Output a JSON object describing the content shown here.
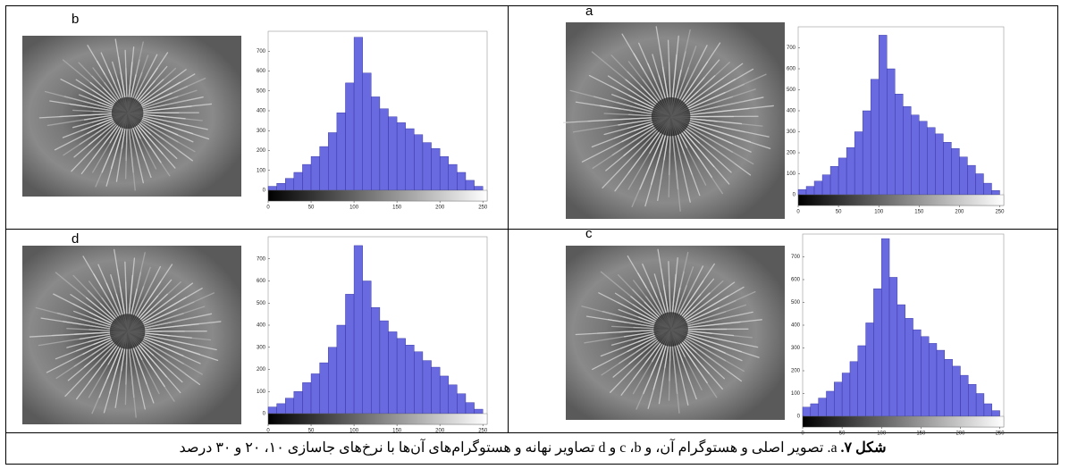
{
  "panels": [
    {
      "label": "b",
      "histogram": {
        "bins": [
          0,
          10,
          20,
          30,
          40,
          50,
          60,
          70,
          80,
          90,
          100,
          110,
          120,
          130,
          140,
          150,
          160,
          170,
          180,
          190,
          200,
          210,
          220,
          230,
          240,
          250
        ],
        "values": [
          20,
          35,
          60,
          90,
          130,
          170,
          220,
          290,
          390,
          540,
          770,
          590,
          470,
          410,
          370,
          340,
          310,
          280,
          240,
          210,
          170,
          130,
          90,
          50,
          20
        ],
        "xlim": [
          0,
          255
        ],
        "ylim": [
          0,
          800
        ],
        "xticks": [
          0,
          50,
          100,
          150,
          200,
          250
        ],
        "yticks": [
          0,
          100,
          200,
          300,
          400,
          500,
          600,
          700
        ]
      }
    },
    {
      "label": "a",
      "histogram": {
        "bins": [
          0,
          10,
          20,
          30,
          40,
          50,
          60,
          70,
          80,
          90,
          100,
          110,
          120,
          130,
          140,
          150,
          160,
          170,
          180,
          190,
          200,
          210,
          220,
          230,
          240,
          250
        ],
        "values": [
          25,
          40,
          65,
          95,
          135,
          175,
          225,
          300,
          400,
          550,
          760,
          600,
          480,
          420,
          380,
          350,
          320,
          290,
          250,
          220,
          180,
          140,
          100,
          55,
          20
        ],
        "xlim": [
          0,
          255
        ],
        "ylim": [
          0,
          800
        ],
        "xticks": [
          0,
          50,
          100,
          150,
          200,
          250
        ],
        "yticks": [
          0,
          100,
          200,
          300,
          400,
          500,
          600,
          700
        ]
      }
    },
    {
      "label": "d",
      "histogram": {
        "bins": [
          0,
          10,
          20,
          30,
          40,
          50,
          60,
          70,
          80,
          90,
          100,
          110,
          120,
          130,
          140,
          150,
          160,
          170,
          180,
          190,
          200,
          210,
          220,
          230,
          240,
          250
        ],
        "values": [
          30,
          45,
          70,
          100,
          140,
          180,
          230,
          300,
          400,
          540,
          760,
          600,
          480,
          420,
          370,
          340,
          310,
          280,
          240,
          210,
          170,
          130,
          90,
          50,
          20
        ],
        "xlim": [
          0,
          255
        ],
        "ylim": [
          0,
          800
        ],
        "xticks": [
          0,
          50,
          100,
          150,
          200,
          250
        ],
        "yticks": [
          0,
          100,
          200,
          300,
          400,
          500,
          600,
          700
        ]
      }
    },
    {
      "label": "c",
      "histogram": {
        "bins": [
          0,
          10,
          20,
          30,
          40,
          50,
          60,
          70,
          80,
          90,
          100,
          110,
          120,
          130,
          140,
          150,
          160,
          170,
          180,
          190,
          200,
          210,
          220,
          230,
          240,
          250
        ],
        "values": [
          40,
          55,
          80,
          110,
          150,
          190,
          240,
          310,
          410,
          560,
          780,
          610,
          490,
          430,
          380,
          350,
          320,
          290,
          250,
          220,
          180,
          140,
          100,
          55,
          25
        ],
        "xlim": [
          0,
          255
        ],
        "ylim": [
          0,
          800
        ],
        "xticks": [
          0,
          50,
          100,
          150,
          200,
          250
        ],
        "yticks": [
          0,
          100,
          200,
          300,
          400,
          500,
          600,
          700
        ]
      }
    }
  ],
  "caption": {
    "label": "شکل ۷.",
    "text": "a. تصویر اصلی و هستوگرام آن، و c ،b و d تصاویر نهانه و هستوگرام‌های آن‌ها با نرخ‌های جاسازی ۱۰، ۲۰ و ۳۰ درصد"
  }
}
